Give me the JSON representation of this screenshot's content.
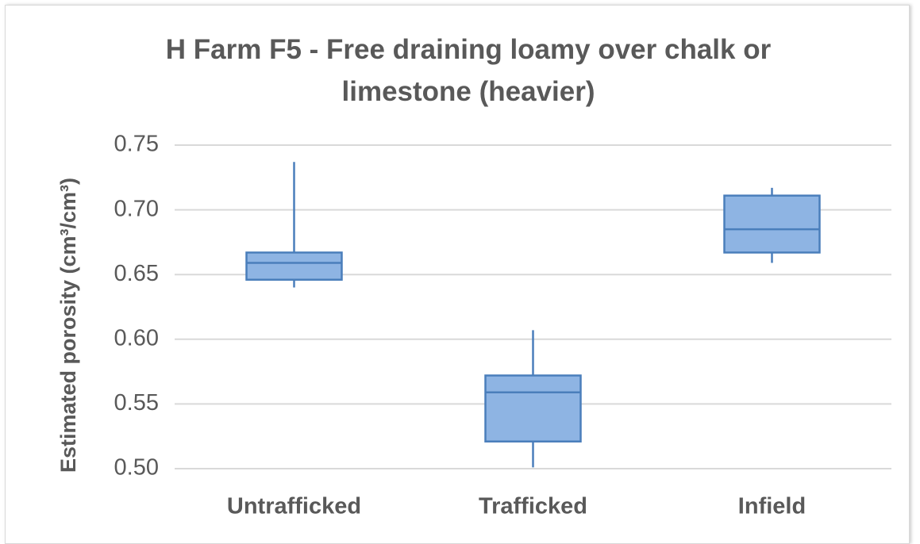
{
  "chart_data": {
    "type": "box",
    "title": "H Farm F5 - Free draining loamy over chalk or limestone (heavier)",
    "y_label": "Estimated porosity (cm³/cm³)",
    "categories": [
      "Untrafficked",
      "Trafficked",
      "Infield"
    ],
    "boxes": [
      {
        "min": 0.64,
        "q1": 0.646,
        "median": 0.659,
        "q3": 0.667,
        "max": 0.737
      },
      {
        "min": 0.501,
        "q1": 0.521,
        "median": 0.559,
        "q3": 0.572,
        "max": 0.607
      },
      {
        "min": 0.659,
        "q1": 0.667,
        "median": 0.685,
        "q3": 0.711,
        "max": 0.717
      }
    ],
    "color": "#8eb4e3",
    "edge_color": "#4a7ebb",
    "ylim": [
      0.5,
      0.75
    ],
    "yticks": [
      {
        "value": 0.5,
        "label": "0.50"
      },
      0.55,
      {
        "value": 0.6,
        "label": "0.60"
      },
      0.65,
      {
        "value": 0.7,
        "label": "0.70"
      },
      0.75
    ],
    "grid": true
  }
}
